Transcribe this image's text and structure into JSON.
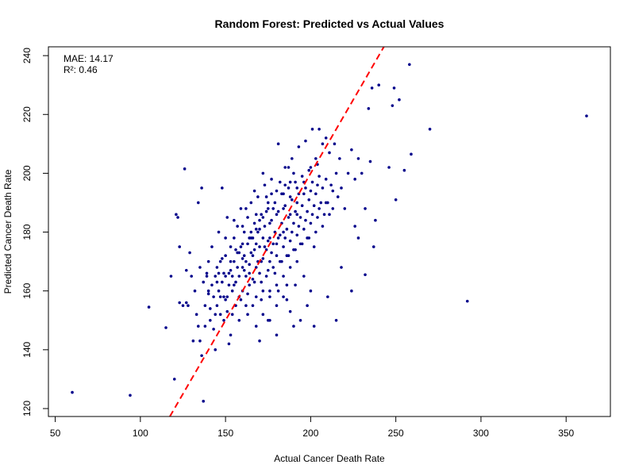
{
  "chart_data": {
    "type": "scatter",
    "title": "Random Forest: Predicted vs Actual Values",
    "xlabel": "Actual Cancer Death Rate",
    "ylabel": "Predicted Cancer Death Rate",
    "xlim": [
      46,
      376
    ],
    "ylim": [
      117.3,
      243
    ],
    "xticks": [
      50,
      100,
      150,
      200,
      250,
      300,
      350
    ],
    "yticks": [
      120,
      140,
      160,
      180,
      200,
      220,
      240
    ],
    "point_color": "#00008B",
    "reference_line": {
      "slope": 1,
      "intercept": 0,
      "color": "#FF0000",
      "style": "dashed"
    },
    "annotations": [
      "MAE: 14.17",
      "R²: 0.46"
    ],
    "points": [
      [
        60,
        125.5
      ],
      [
        94,
        124.5
      ],
      [
        105,
        154.5
      ],
      [
        115,
        147.5
      ],
      [
        118,
        165
      ],
      [
        120,
        130
      ],
      [
        121,
        186
      ],
      [
        122,
        185
      ],
      [
        123,
        156
      ],
      [
        123,
        175
      ],
      [
        125,
        155
      ],
      [
        126,
        201.5
      ],
      [
        127,
        156
      ],
      [
        127,
        167
      ],
      [
        128,
        155
      ],
      [
        129,
        173
      ],
      [
        130,
        165
      ],
      [
        131,
        143
      ],
      [
        132,
        160
      ],
      [
        133,
        152
      ],
      [
        134,
        148
      ],
      [
        134,
        190
      ],
      [
        135,
        168
      ],
      [
        135,
        143
      ],
      [
        136,
        138
      ],
      [
        136,
        195
      ],
      [
        137,
        163
      ],
      [
        137,
        122.5
      ],
      [
        138,
        148
      ],
      [
        138,
        155
      ],
      [
        139,
        165
      ],
      [
        140,
        160
      ],
      [
        140,
        170
      ],
      [
        141,
        150
      ],
      [
        142,
        175
      ],
      [
        142,
        162
      ],
      [
        143,
        158
      ],
      [
        144,
        140
      ],
      [
        144,
        165
      ],
      [
        145,
        168
      ],
      [
        145,
        155
      ],
      [
        146,
        180
      ],
      [
        146,
        160
      ],
      [
        147,
        152
      ],
      [
        147,
        170
      ],
      [
        148,
        163
      ],
      [
        148,
        195
      ],
      [
        149,
        158
      ],
      [
        149,
        150
      ],
      [
        150,
        172
      ],
      [
        150,
        165
      ],
      [
        151,
        185
      ],
      [
        151,
        158
      ],
      [
        152,
        162
      ],
      [
        152,
        142
      ],
      [
        153,
        175
      ],
      [
        153,
        167
      ],
      [
        154,
        160
      ],
      [
        154,
        152
      ],
      [
        155,
        178
      ],
      [
        155,
        170
      ],
      [
        156,
        163
      ],
      [
        156,
        155
      ],
      [
        157,
        182
      ],
      [
        157,
        173
      ],
      [
        158,
        165
      ],
      [
        158,
        158
      ],
      [
        159,
        188
      ],
      [
        159,
        175
      ],
      [
        160,
        168
      ],
      [
        160,
        160
      ],
      [
        161,
        180
      ],
      [
        161,
        172
      ],
      [
        162,
        165
      ],
      [
        162,
        155
      ],
      [
        163,
        185
      ],
      [
        163,
        176
      ],
      [
        164,
        169
      ],
      [
        164,
        162
      ],
      [
        165,
        190
      ],
      [
        165,
        178
      ],
      [
        166,
        172
      ],
      [
        166,
        164
      ],
      [
        167,
        183
      ],
      [
        167,
        174
      ],
      [
        168,
        168
      ],
      [
        168,
        158
      ],
      [
        169,
        192
      ],
      [
        169,
        180
      ],
      [
        170,
        175
      ],
      [
        170,
        166
      ],
      [
        171,
        186
      ],
      [
        171,
        170
      ],
      [
        172,
        178
      ],
      [
        172,
        160
      ],
      [
        173,
        196
      ],
      [
        173,
        182
      ],
      [
        174,
        174
      ],
      [
        174,
        165
      ],
      [
        175,
        188
      ],
      [
        175,
        177
      ],
      [
        176,
        170
      ],
      [
        176,
        160
      ],
      [
        177,
        198
      ],
      [
        177,
        184
      ],
      [
        178,
        176
      ],
      [
        178,
        168
      ],
      [
        179,
        190
      ],
      [
        179,
        180
      ],
      [
        180,
        172
      ],
      [
        180,
        162
      ],
      [
        181,
        210
      ],
      [
        181,
        187
      ],
      [
        182,
        179
      ],
      [
        182,
        170
      ],
      [
        183,
        193
      ],
      [
        183,
        183
      ],
      [
        184,
        175
      ],
      [
        184,
        165
      ],
      [
        185,
        202
      ],
      [
        185,
        189
      ],
      [
        186,
        181
      ],
      [
        186,
        172
      ],
      [
        187,
        195
      ],
      [
        187,
        185
      ],
      [
        188,
        177
      ],
      [
        188,
        168
      ],
      [
        189,
        205
      ],
      [
        189,
        191
      ],
      [
        190,
        183
      ],
      [
        190,
        174
      ],
      [
        191,
        197
      ],
      [
        191,
        187
      ],
      [
        192,
        179
      ],
      [
        192,
        170
      ],
      [
        193,
        209
      ],
      [
        193,
        193
      ],
      [
        194,
        185
      ],
      [
        194,
        176
      ],
      [
        195,
        199
      ],
      [
        195,
        189
      ],
      [
        196,
        181
      ],
      [
        196,
        165
      ],
      [
        197,
        211
      ],
      [
        197,
        195
      ],
      [
        198,
        187
      ],
      [
        198,
        178
      ],
      [
        199,
        201
      ],
      [
        199,
        191
      ],
      [
        200,
        183
      ],
      [
        200,
        160
      ],
      [
        201,
        215
      ],
      [
        201,
        197
      ],
      [
        202,
        189
      ],
      [
        202,
        175
      ],
      [
        203,
        205
      ],
      [
        203,
        193
      ],
      [
        204,
        185
      ],
      [
        205,
        215
      ],
      [
        205,
        199
      ],
      [
        206,
        190
      ],
      [
        207,
        210
      ],
      [
        207,
        195
      ],
      [
        208,
        186
      ],
      [
        209,
        212
      ],
      [
        209,
        198
      ],
      [
        210,
        190
      ],
      [
        211,
        207
      ],
      [
        212,
        196
      ],
      [
        213,
        188
      ],
      [
        214,
        210
      ],
      [
        215,
        200
      ],
      [
        216,
        192
      ],
      [
        217,
        205
      ],
      [
        218,
        195
      ],
      [
        220,
        188
      ],
      [
        222,
        200
      ],
      [
        224,
        208
      ],
      [
        226,
        198
      ],
      [
        228,
        205
      ],
      [
        230,
        200
      ],
      [
        232,
        165.5
      ],
      [
        234,
        222
      ],
      [
        235,
        204
      ],
      [
        236,
        229
      ],
      [
        237,
        175
      ],
      [
        238,
        184
      ],
      [
        240,
        230
      ],
      [
        246,
        202
      ],
      [
        248,
        223
      ],
      [
        249,
        229
      ],
      [
        250,
        191
      ],
      [
        252,
        225
      ],
      [
        255,
        201
      ],
      [
        258,
        237
      ],
      [
        259,
        206.5
      ],
      [
        270,
        215
      ],
      [
        292,
        156.5
      ],
      [
        362,
        219.5
      ],
      [
        143,
        147
      ],
      [
        145,
        163
      ],
      [
        147,
        158
      ],
      [
        149,
        166
      ],
      [
        151,
        153
      ],
      [
        153,
        170
      ],
      [
        155,
        162
      ],
      [
        157,
        168
      ],
      [
        159,
        157
      ],
      [
        161,
        167
      ],
      [
        163,
        159
      ],
      [
        165,
        173
      ],
      [
        167,
        163
      ],
      [
        169,
        170
      ],
      [
        171,
        163
      ],
      [
        173,
        175
      ],
      [
        175,
        167
      ],
      [
        177,
        173
      ],
      [
        179,
        166
      ],
      [
        181,
        178
      ],
      [
        183,
        170
      ],
      [
        185,
        178
      ],
      [
        187,
        172
      ],
      [
        189,
        180
      ],
      [
        191,
        174
      ],
      [
        193,
        182
      ],
      [
        195,
        176
      ],
      [
        197,
        184
      ],
      [
        199,
        178
      ],
      [
        201,
        186
      ],
      [
        203,
        180
      ],
      [
        205,
        188
      ],
      [
        207,
        182
      ],
      [
        209,
        190
      ],
      [
        211,
        186
      ],
      [
        213,
        194
      ],
      [
        165,
        180
      ],
      [
        170,
        184
      ],
      [
        175,
        190
      ],
      [
        180,
        194
      ],
      [
        185,
        196
      ],
      [
        190,
        200
      ],
      [
        162,
        188
      ],
      [
        167,
        194
      ],
      [
        172,
        200
      ],
      [
        177,
        193
      ],
      [
        182,
        197
      ],
      [
        187,
        202
      ],
      [
        150,
        178
      ],
      [
        155,
        184
      ],
      [
        160,
        176
      ],
      [
        168,
        186
      ],
      [
        174,
        192
      ],
      [
        178,
        188
      ],
      [
        184,
        193
      ],
      [
        188,
        197
      ],
      [
        192,
        186
      ],
      [
        196,
        193
      ],
      [
        200,
        194
      ],
      [
        204,
        196
      ],
      [
        158,
        150
      ],
      [
        163,
        152
      ],
      [
        168,
        148
      ],
      [
        172,
        152
      ],
      [
        176,
        150
      ],
      [
        180,
        155
      ],
      [
        184,
        158
      ],
      [
        188,
        153
      ],
      [
        194,
        150
      ],
      [
        198,
        155
      ],
      [
        202,
        148
      ],
      [
        210,
        158
      ],
      [
        215,
        150
      ],
      [
        218,
        168
      ],
      [
        224,
        160
      ],
      [
        228,
        178
      ],
      [
        232,
        188
      ],
      [
        226,
        182
      ],
      [
        153,
        145
      ],
      [
        170,
        143
      ],
      [
        180,
        145
      ],
      [
        190,
        148
      ],
      [
        175,
        150
      ],
      [
        186,
        162
      ],
      [
        166,
        155
      ],
      [
        171,
        157
      ],
      [
        176,
        158
      ],
      [
        181,
        160
      ],
      [
        186,
        157
      ],
      [
        191,
        162
      ],
      [
        160,
        171
      ],
      [
        164,
        166
      ],
      [
        168,
        176
      ],
      [
        172,
        171
      ],
      [
        176,
        178
      ],
      [
        180,
        176
      ],
      [
        184,
        180
      ],
      [
        188,
        186
      ],
      [
        192,
        190
      ],
      [
        196,
        197
      ],
      [
        200,
        202
      ],
      [
        204,
        203
      ],
      [
        148,
        171
      ],
      [
        152,
        166
      ],
      [
        156,
        174
      ],
      [
        160,
        182
      ],
      [
        164,
        178
      ],
      [
        168,
        181
      ],
      [
        172,
        185
      ],
      [
        176,
        183
      ],
      [
        180,
        186
      ],
      [
        184,
        188
      ],
      [
        188,
        192
      ],
      [
        192,
        195
      ],
      [
        140,
        159
      ],
      [
        144,
        152
      ],
      [
        139,
        166
      ],
      [
        141,
        154
      ],
      [
        146,
        166
      ],
      [
        150,
        157
      ],
      [
        154,
        165
      ],
      [
        158,
        173
      ],
      [
        162,
        170
      ],
      [
        166,
        178
      ],
      [
        170,
        181
      ],
      [
        174,
        187
      ]
    ]
  }
}
